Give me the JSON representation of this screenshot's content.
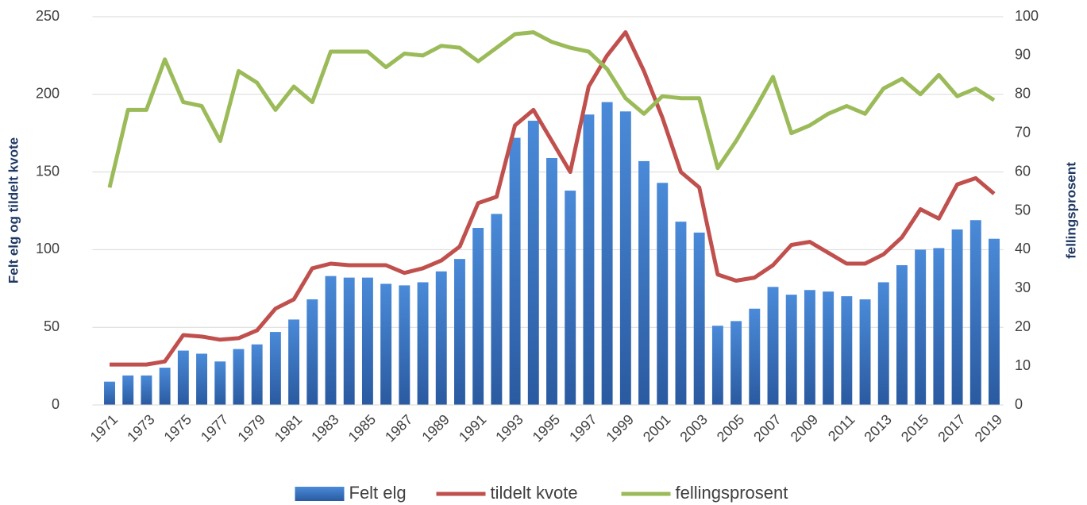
{
  "chart_data": {
    "type": "bar",
    "categories": [
      "1971",
      null,
      "1973",
      null,
      "1975",
      null,
      "1977",
      null,
      "1979",
      null,
      "1981",
      null,
      "1983",
      null,
      "1985",
      null,
      "1987",
      null,
      "1989",
      null,
      "1991",
      null,
      "1993",
      null,
      "1995",
      null,
      "1997",
      null,
      "1999",
      null,
      "2001",
      null,
      "2003",
      null,
      "2005",
      null,
      "2007",
      null,
      "2009",
      null,
      "2011",
      null,
      "2013",
      null,
      "2015",
      null,
      "2017",
      null,
      "2019"
    ],
    "y_label": "Felt elg og tildelt kvote",
    "y2_label": "fellingsprosent",
    "ylim": [
      0,
      250
    ],
    "yticks": [
      0,
      50,
      100,
      150,
      200,
      250
    ],
    "y2lim": [
      0,
      100
    ],
    "y2ticks": [
      0,
      10,
      20,
      30,
      40,
      50,
      60,
      70,
      80,
      90,
      100
    ],
    "grid": true,
    "legend": "bottom",
    "series": [
      {
        "name": "Felt elg",
        "type": "bar",
        "color": "#3d7cc9",
        "values": [
          15,
          19,
          19,
          24,
          35,
          33,
          28,
          36,
          39,
          47,
          55,
          68,
          83,
          82,
          82,
          78,
          77,
          79,
          86,
          94,
          114,
          123,
          172,
          183,
          159,
          138,
          187,
          195,
          189,
          157,
          143,
          118,
          111,
          51,
          54,
          62,
          76,
          71,
          74,
          73,
          70,
          68,
          79,
          90,
          100,
          101,
          113,
          119,
          107
        ]
      },
      {
        "name": "tildelt kvote",
        "type": "line",
        "color": "#c0504d",
        "values": [
          26,
          26,
          26,
          28,
          45,
          44,
          42,
          43,
          48,
          62,
          68,
          88,
          91,
          90,
          90,
          90,
          85,
          88,
          93,
          102,
          130,
          134,
          180,
          190,
          170,
          150,
          205,
          225,
          240,
          215,
          185,
          150,
          140,
          84,
          80,
          82,
          90,
          103,
          105,
          98,
          91,
          91,
          97,
          108,
          126,
          120,
          142,
          146,
          136
        ]
      },
      {
        "name": "fellingsprosent",
        "type": "line",
        "axis": "y2",
        "color": "#9bbb59",
        "values": [
          56,
          76,
          76,
          89,
          78,
          77,
          68,
          86,
          83,
          76,
          82,
          78,
          91,
          91,
          91,
          87,
          90.5,
          90,
          92.5,
          92,
          88.5,
          92,
          95.5,
          96,
          93.5,
          92,
          91,
          86.5,
          79,
          75,
          79.5,
          79,
          79,
          61,
          68,
          76,
          84.5,
          70,
          72,
          75,
          77,
          75,
          81.5,
          84,
          80,
          85,
          79.5,
          81.5,
          78.5
        ]
      }
    ]
  }
}
